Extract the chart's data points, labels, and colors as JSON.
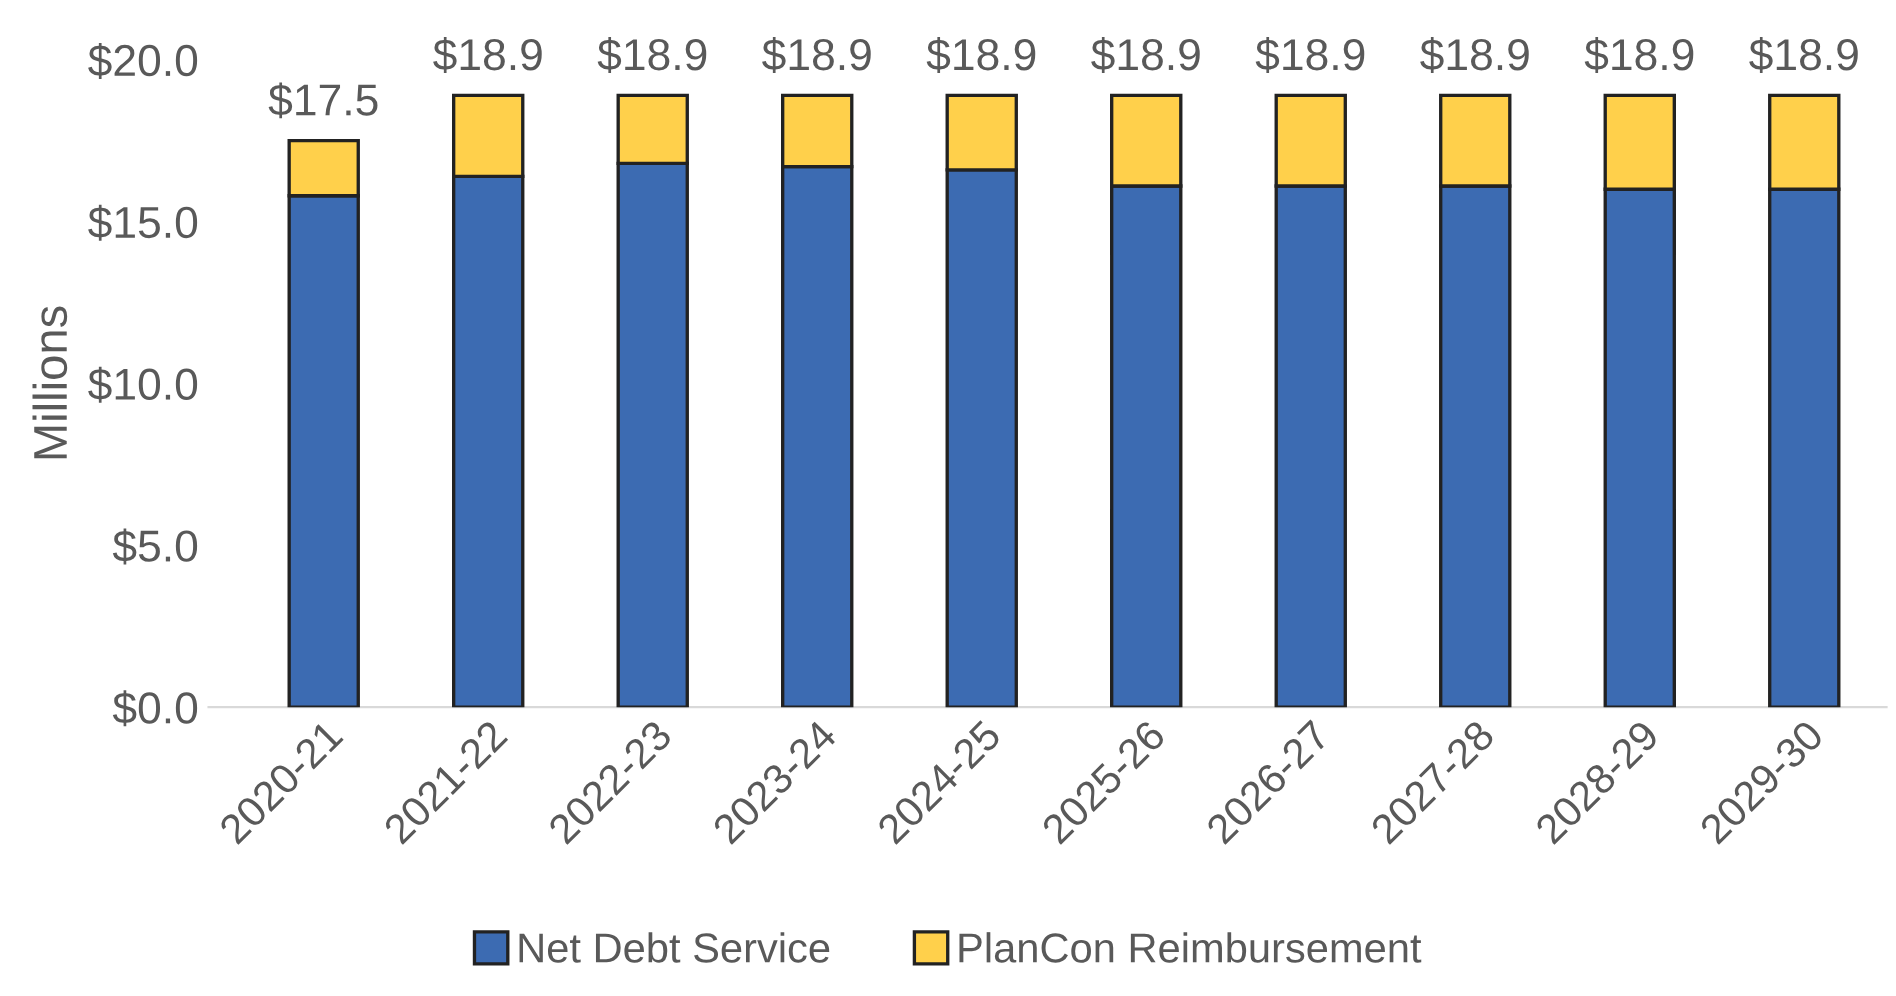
{
  "chart_data": {
    "type": "bar",
    "stacked": true,
    "ylabel": "Millions",
    "categories": [
      "2020-21",
      "2021-22",
      "2022-23",
      "2023-24",
      "2024-25",
      "2025-26",
      "2026-27",
      "2027-28",
      "2028-29",
      "2029-30"
    ],
    "series": [
      {
        "name": "Net Debt Service",
        "color": "#3c6bb2",
        "values": [
          15.8,
          16.4,
          16.8,
          16.7,
          16.6,
          16.1,
          16.1,
          16.1,
          16.0,
          16.0
        ]
      },
      {
        "name": "PlanCon Reimbursement",
        "color": "#ffd04b",
        "values": [
          1.7,
          2.5,
          2.1,
          2.2,
          2.3,
          2.8,
          2.8,
          2.8,
          2.9,
          2.9
        ]
      }
    ],
    "totals": [
      "$17.5",
      "$18.9",
      "$18.9",
      "$18.9",
      "$18.9",
      "$18.9",
      "$18.9",
      "$18.9",
      "$18.9",
      "$18.9"
    ],
    "ylim": [
      0,
      20
    ],
    "yticks": [
      {
        "value": 0,
        "label": "$0.0"
      },
      {
        "value": 5,
        "label": "$5.0"
      },
      {
        "value": 10,
        "label": "$10.0"
      },
      {
        "value": 15,
        "label": "$15.0"
      },
      {
        "value": 20,
        "label": "$20.0"
      }
    ],
    "grid": false,
    "legend": "bottom"
  }
}
